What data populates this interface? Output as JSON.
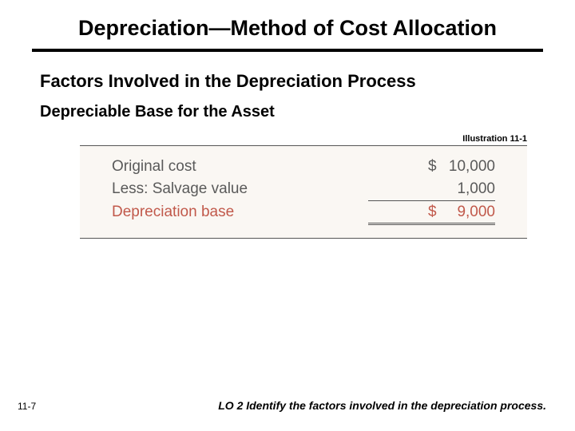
{
  "title": "Depreciation—Method of Cost Allocation",
  "subtitle": "Factors Involved in the Depreciation Process",
  "subheading": "Depreciable Base for the Asset",
  "illustration_label": "Illustration 11-1",
  "table": {
    "background_color": "#faf7f3",
    "border_color": "#555555",
    "label_color": "#5a5a5a",
    "accent_color": "#c1594b",
    "fontsize": 19,
    "rows": [
      {
        "label": "Original cost",
        "currency": "$",
        "value": "10,000",
        "accent": false
      },
      {
        "label": "Less: Salvage value",
        "currency": "",
        "value": "1,000",
        "accent": false
      },
      {
        "label": "Depreciation base",
        "currency": "$",
        "value": "9,000",
        "accent": true
      }
    ]
  },
  "page_number": "11-7",
  "footer": "LO 2  Identify the factors involved in the depreciation process."
}
